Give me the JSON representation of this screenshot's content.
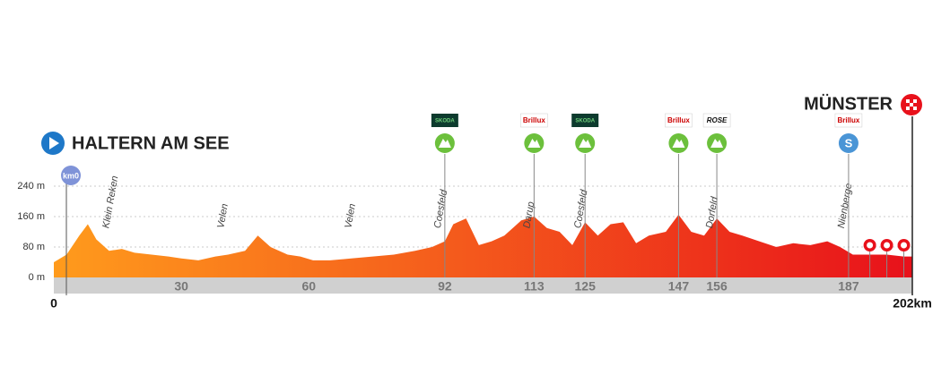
{
  "chart_data": {
    "type": "area",
    "start": "HALTERN AM SEE",
    "finish": "MÜNSTER",
    "km0": "km0",
    "colors": [
      "#ff9b1c",
      "#e8111b"
    ],
    "x": [
      0,
      3,
      6,
      8,
      10,
      13,
      16,
      19,
      23,
      27,
      30,
      34,
      38,
      41,
      45,
      48,
      51,
      55,
      58,
      61,
      65,
      70,
      75,
      80,
      85,
      89,
      92,
      94,
      97,
      100,
      103,
      106,
      110,
      113,
      116,
      119,
      122,
      125,
      128,
      131,
      134,
      137,
      140,
      144,
      147,
      150,
      153,
      156,
      159,
      162,
      166,
      170,
      174,
      178,
      182,
      185,
      188,
      192,
      196,
      200,
      202
    ],
    "values": [
      40,
      60,
      110,
      140,
      100,
      70,
      75,
      65,
      60,
      55,
      50,
      45,
      55,
      60,
      70,
      110,
      80,
      60,
      55,
      45,
      45,
      50,
      55,
      60,
      70,
      80,
      95,
      140,
      155,
      85,
      95,
      110,
      150,
      160,
      130,
      120,
      85,
      145,
      110,
      140,
      145,
      90,
      110,
      120,
      165,
      120,
      110,
      155,
      120,
      110,
      95,
      80,
      90,
      85,
      95,
      80,
      60,
      60,
      60,
      55,
      55
    ],
    "xlim": [
      0,
      202
    ],
    "ylim": [
      0,
      240
    ],
    "yticks": [
      {
        "value": 0,
        "label": "0 m"
      },
      {
        "value": 80,
        "label": "80 m"
      },
      {
        "value": 160,
        "label": "160 m"
      },
      {
        "value": 240,
        "label": "240 m"
      }
    ],
    "xticks": [
      0,
      30,
      60,
      92,
      113,
      125,
      147,
      156,
      187,
      {
        "value": 202,
        "label": "202km"
      }
    ],
    "grid": true,
    "places": [
      {
        "name": "Klein Reken",
        "km": 14
      },
      {
        "name": "Velen",
        "km": 41
      },
      {
        "name": "Velen",
        "km": 71
      },
      {
        "name": "Coesfeld",
        "km": 92
      },
      {
        "name": "Darup",
        "km": 113
      },
      {
        "name": "Coesfeld",
        "km": 125
      },
      {
        "name": "Dorfeld",
        "km": 156
      },
      {
        "name": "Nienberge",
        "km": 187
      }
    ],
    "markers": [
      {
        "km": 92,
        "sponsor": "SKODA"
      },
      {
        "km": 113,
        "sponsor": "Brillux"
      },
      {
        "km": 125,
        "sponsor": "SKODA"
      },
      {
        "km": 147,
        "sponsor": "Brillux"
      },
      {
        "km": 156,
        "sponsor": "ROSE"
      },
      {
        "km": 187,
        "sponsor": "Brillux",
        "label": "S"
      }
    ],
    "laps": [
      192,
      196,
      200
    ]
  }
}
